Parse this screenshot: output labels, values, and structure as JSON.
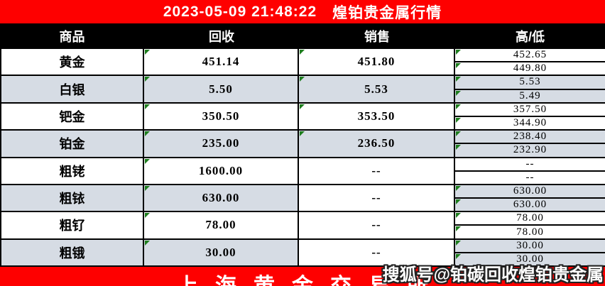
{
  "palette": {
    "banner_red": "#fe0000",
    "header_black": "#000000",
    "row_shade": "#d6dce4",
    "flag_green": "#1e7e1e",
    "text_white": "#ffffff",
    "text_black": "#000000"
  },
  "top_banner": {
    "datetime": "2023-05-09  21:48:22",
    "title": "煌铂贵金属行情"
  },
  "table": {
    "columns": {
      "commodity": "商品",
      "recycle": "回收",
      "sale": "销售",
      "high_low": "高/低"
    },
    "rows": [
      {
        "name": "黄金",
        "recycle": "451.14",
        "sale": "451.80",
        "high": "452.65",
        "low": "449.80",
        "shaded": false,
        "sale_shaded": false,
        "flags": {
          "recycle": true,
          "sale": true,
          "high": true,
          "low": true
        }
      },
      {
        "name": "白银",
        "recycle": "5.50",
        "sale": "5.53",
        "high": "5.53",
        "low": "5.49",
        "shaded": true,
        "sale_shaded": true,
        "flags": {
          "recycle": true,
          "sale": true,
          "high": true,
          "low": true
        }
      },
      {
        "name": "钯金",
        "recycle": "350.50",
        "sale": "353.50",
        "high": "357.50",
        "low": "344.90",
        "shaded": false,
        "sale_shaded": false,
        "flags": {
          "recycle": true,
          "sale": true,
          "high": true,
          "low": true
        }
      },
      {
        "name": "铂金",
        "recycle": "235.00",
        "sale": "236.50",
        "high": "238.40",
        "low": "232.90",
        "shaded": true,
        "sale_shaded": true,
        "flags": {
          "recycle": true,
          "sale": true,
          "high": true,
          "low": true
        }
      },
      {
        "name": "粗铑",
        "recycle": "1600.00",
        "sale": "--",
        "high": "--",
        "low": "--",
        "shaded": false,
        "sale_shaded": false,
        "flags": {
          "recycle": true,
          "sale": false,
          "high": false,
          "low": false
        }
      },
      {
        "name": "粗铱",
        "recycle": "630.00",
        "sale": "--",
        "high": "630.00",
        "low": "630.00",
        "shaded": true,
        "sale_shaded": false,
        "flags": {
          "recycle": true,
          "sale": false,
          "high": true,
          "low": true
        }
      },
      {
        "name": "粗钌",
        "recycle": "78.00",
        "sale": "--",
        "high": "78.00",
        "low": "78.00",
        "shaded": false,
        "sale_shaded": false,
        "flags": {
          "recycle": true,
          "sale": false,
          "high": true,
          "low": true
        }
      },
      {
        "name": "粗锇",
        "recycle": "30.00",
        "sale": "--",
        "high": "30.00",
        "low": "30.00",
        "shaded": true,
        "sale_shaded": false,
        "flags": {
          "recycle": true,
          "sale": false,
          "high": true,
          "low": true
        }
      }
    ]
  },
  "bottom_banner": {
    "exchange": "上海黄金交易所"
  },
  "watermark": {
    "text": "搜狐号@铂碳回收煌铂贵金属"
  }
}
